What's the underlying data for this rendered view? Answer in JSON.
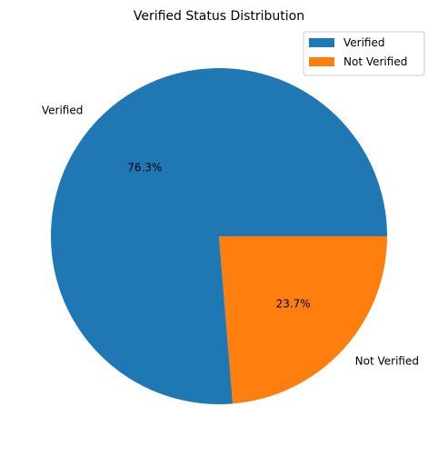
{
  "chart_data": {
    "type": "pie",
    "title": "Verified Status Distribution",
    "categories": [
      "Verified",
      "Not Verified"
    ],
    "values": [
      76.3,
      23.7
    ],
    "percent_labels": [
      "76.3%",
      "23.7%"
    ],
    "colors": [
      "#1f77b4",
      "#ff7f0e"
    ],
    "start_angle_deg": 0,
    "direction": "counterclockwise",
    "legend": {
      "placement": "upper-right",
      "entries": [
        "Verified",
        "Not Verified"
      ]
    }
  }
}
